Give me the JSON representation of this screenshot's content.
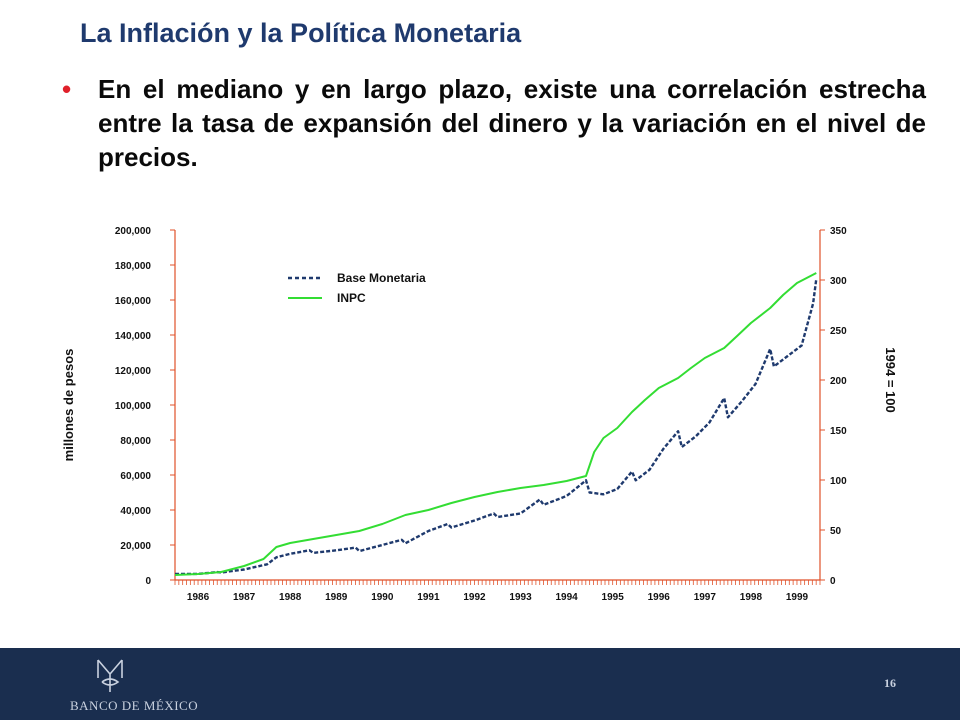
{
  "slide": {
    "title": "La Inflación y la Política Monetaria",
    "bullet": "•",
    "body": "En el mediano y en largo plazo, existe una correlación estrecha entre la tasa de expansión del dinero y la variación en el nivel de precios."
  },
  "footer": {
    "bank_name": "BANCO DE MÉXICO",
    "page_number": "16",
    "background": "#1a2e4f"
  },
  "chart_data": {
    "type": "line",
    "title": "",
    "ylabel_left": "millones de pesos",
    "ylabel_right": "1994 = 100",
    "left_axis": {
      "min": 0,
      "max": 200000,
      "ticks": [
        "0",
        "20,000",
        "40,000",
        "60,000",
        "80,000",
        "100,000",
        "120,000",
        "140,000",
        "160,000",
        "180,000",
        "200,000"
      ]
    },
    "right_axis": {
      "min": 0,
      "max": 350,
      "ticks": [
        "0",
        "50",
        "100",
        "150",
        "200",
        "250",
        "300",
        "350"
      ]
    },
    "x_axis": {
      "start": 1986,
      "end": 2000,
      "ticks": [
        "1986",
        "1987",
        "1988",
        "1989",
        "1990",
        "1991",
        "1992",
        "1993",
        "1994",
        "1995",
        "1996",
        "1997",
        "1998",
        "1999"
      ]
    },
    "legend_position": "top-left",
    "series": [
      {
        "name": "Base Monetaria",
        "axis": "left",
        "color": "#1f3a6e",
        "style": "dashed",
        "x": [
          1986.0,
          1986.5,
          1986.92,
          1987.0,
          1987.5,
          1987.92,
          1988.0,
          1988.2,
          1988.5,
          1988.92,
          1989.0,
          1989.5,
          1989.92,
          1990.0,
          1990.5,
          1990.92,
          1991.0,
          1991.5,
          1991.92,
          1992.0,
          1992.5,
          1992.92,
          1993.0,
          1993.5,
          1993.92,
          1994.0,
          1994.5,
          1994.92,
          1995.0,
          1995.3,
          1995.6,
          1995.92,
          1996.0,
          1996.3,
          1996.6,
          1996.92,
          1997.0,
          1997.3,
          1997.6,
          1997.92,
          1998.0,
          1998.3,
          1998.6,
          1998.92,
          1999.0,
          1999.3,
          1999.6,
          1999.85,
          1999.92
        ],
        "values": [
          3500,
          3500,
          4500,
          4300,
          6000,
          8500,
          9000,
          13000,
          15000,
          17000,
          15500,
          17000,
          18500,
          16500,
          20000,
          23000,
          21000,
          28000,
          32000,
          30000,
          34000,
          38000,
          36000,
          38000,
          46000,
          43000,
          48000,
          57000,
          50000,
          49000,
          52000,
          62000,
          57000,
          63000,
          75000,
          85000,
          76000,
          82000,
          90000,
          104000,
          93000,
          102000,
          112000,
          132000,
          122000,
          128000,
          134000,
          158000,
          172000
        ]
      },
      {
        "name": "INPC",
        "axis": "right",
        "color": "#33dd33",
        "style": "solid",
        "x": [
          1986.0,
          1986.5,
          1987.0,
          1987.5,
          1987.92,
          1988.2,
          1988.5,
          1989.0,
          1989.5,
          1990.0,
          1990.5,
          1991.0,
          1991.5,
          1992.0,
          1992.5,
          1993.0,
          1993.5,
          1994.0,
          1994.5,
          1994.92,
          1995.1,
          1995.3,
          1995.6,
          1995.92,
          1996.2,
          1996.5,
          1996.92,
          1997.2,
          1997.5,
          1997.92,
          1998.2,
          1998.5,
          1998.92,
          1999.2,
          1999.5,
          1999.92
        ],
        "values": [
          5,
          6,
          8,
          14,
          21,
          33,
          37,
          41,
          45,
          49,
          56,
          65,
          70,
          77,
          83,
          88,
          92,
          95,
          99,
          104,
          128,
          142,
          152,
          168,
          180,
          192,
          202,
          212,
          222,
          232,
          244,
          257,
          272,
          285,
          297,
          307
        ]
      }
    ]
  }
}
